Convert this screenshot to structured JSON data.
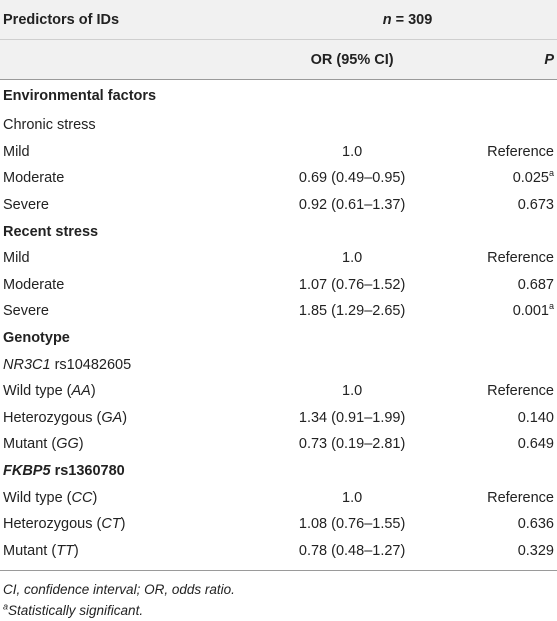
{
  "header": {
    "predictors_label": "Predictors of IDs",
    "n_label": "n",
    "n_value": "= 309",
    "or_label": "OR (95% CI)",
    "p_label": "P"
  },
  "sections": {
    "environmental": "Environmental factors",
    "chronic": "Chronic stress",
    "recent": "Recent stress",
    "genotype": "Genotype",
    "nr3c1_gene": "NR3C1",
    "nr3c1_snp": " rs10482605",
    "fkbp5_gene": "FKBP5",
    "fkbp5_snp": " rs1360780"
  },
  "rows": {
    "chronic_mild": {
      "label": "Mild",
      "or": "1.0",
      "p": "Reference"
    },
    "chronic_moderate": {
      "label": "Moderate",
      "or": "0.69 (0.49–0.95)",
      "p": "0.025",
      "sup": "a"
    },
    "chronic_severe": {
      "label": "Severe",
      "or": "0.92 (0.61–1.37)",
      "p": "0.673"
    },
    "recent_mild": {
      "label": "Mild",
      "or": "1.0",
      "p": "Reference"
    },
    "recent_moderate": {
      "label": "Moderate",
      "or": "1.07 (0.76–1.52)",
      "p": "0.687"
    },
    "recent_severe": {
      "label": "Severe",
      "or": "1.85 (1.29–2.65)",
      "p": "0.001",
      "sup": "a"
    },
    "nr3c1_wild": {
      "label": "Wild type (",
      "geno": "AA",
      "or": "1.0",
      "p": "Reference"
    },
    "nr3c1_het": {
      "label": "Heterozygous (",
      "geno": "GA",
      "or": "1.34 (0.91–1.99)",
      "p": "0.140"
    },
    "nr3c1_mut": {
      "label": "Mutant (",
      "geno": "GG",
      "or": "0.73 (0.19–2.81)",
      "p": "0.649"
    },
    "fkbp5_wild": {
      "label": "Wild type (",
      "geno": "CC",
      "or": "1.0",
      "p": "Reference"
    },
    "fkbp5_het": {
      "label": "Heterozygous (",
      "geno": "CT",
      "or": "1.08 (0.76–1.55)",
      "p": "0.636"
    },
    "fkbp5_mut": {
      "label": "Mutant (",
      "geno": "TT",
      "or": "0.78 (0.48–1.27)",
      "p": "0.329"
    }
  },
  "close_paren": ")",
  "footnotes": {
    "abbrev": "CI, confidence interval; OR, odds ratio.",
    "sup": "a",
    "sig": "Statistically significant."
  }
}
